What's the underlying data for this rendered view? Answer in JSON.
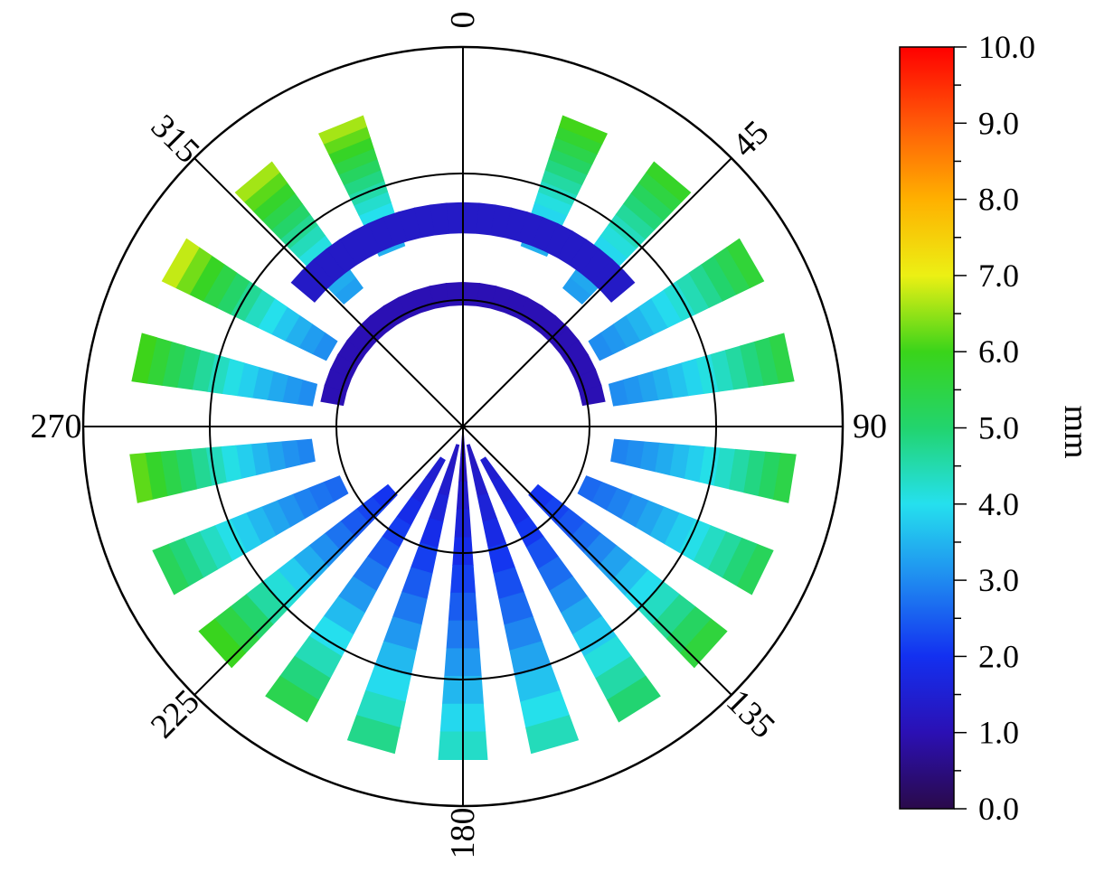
{
  "chart_data": {
    "type": "heatmap",
    "projection": "polar",
    "title": "",
    "angle_ticks": [
      "0",
      "45",
      "90",
      "135",
      "180",
      "225",
      "270",
      "315"
    ],
    "angle_values_deg": [
      0,
      45,
      90,
      135,
      180,
      225,
      270,
      315
    ],
    "radial_rings": 3,
    "colorbar": {
      "label": "mm",
      "min": 0.0,
      "max": 10.0,
      "tick_labels": [
        "0.0",
        "1.0",
        "2.0",
        "3.0",
        "4.0",
        "5.0",
        "6.0",
        "7.0",
        "8.0",
        "9.0",
        "10.0"
      ],
      "tick_values": [
        0,
        1,
        2,
        3,
        4,
        5,
        6,
        7,
        8,
        9,
        10
      ],
      "colormap": [
        "#2a0a4a",
        "#2b10b4",
        "#1330f0",
        "#1f8af0",
        "#25e0ee",
        "#22d46e",
        "#3ad41a",
        "#ecf014",
        "#ffb000",
        "#ff5a08",
        "#ff0000"
      ]
    },
    "strips": [
      {
        "angle_deg": 180,
        "inner_r": 0.0,
        "outer_r": 0.88,
        "value_inner": 1.0,
        "value_outer": 4.5
      },
      {
        "angle_deg": 196,
        "inner_r": 0.05,
        "outer_r": 0.88,
        "value_inner": 1.2,
        "value_outer": 5.0
      },
      {
        "angle_deg": 164,
        "inner_r": 0.05,
        "outer_r": 0.88,
        "value_inner": 1.2,
        "value_outer": 4.6
      },
      {
        "angle_deg": 212,
        "inner_r": 0.1,
        "outer_r": 0.88,
        "value_inner": 1.4,
        "value_outer": 5.6
      },
      {
        "angle_deg": 148,
        "inner_r": 0.1,
        "outer_r": 0.88,
        "value_inner": 1.4,
        "value_outer": 5.2
      },
      {
        "angle_deg": 228,
        "inner_r": 0.25,
        "outer_r": 0.88,
        "value_inner": 2.0,
        "value_outer": 6.2
      },
      {
        "angle_deg": 132,
        "inner_r": 0.25,
        "outer_r": 0.88,
        "value_inner": 2.0,
        "value_outer": 5.8
      },
      {
        "angle_deg": 244,
        "inner_r": 0.35,
        "outer_r": 0.88,
        "value_inner": 2.6,
        "value_outer": 5.4
      },
      {
        "angle_deg": 116,
        "inner_r": 0.35,
        "outer_r": 0.88,
        "value_inner": 2.6,
        "value_outer": 5.4
      },
      {
        "angle_deg": 261,
        "inner_r": 0.4,
        "outer_r": 0.88,
        "value_inner": 2.9,
        "value_outer": 6.4
      },
      {
        "angle_deg": 99,
        "inner_r": 0.4,
        "outer_r": 0.88,
        "value_inner": 2.9,
        "value_outer": 5.6
      },
      {
        "angle_deg": 282,
        "inner_r": 0.4,
        "outer_r": 0.88,
        "value_inner": 3.0,
        "value_outer": 6.2
      },
      {
        "angle_deg": 78,
        "inner_r": 0.4,
        "outer_r": 0.88,
        "value_inner": 3.0,
        "value_outer": 5.6
      },
      {
        "angle_deg": 300,
        "inner_r": 0.4,
        "outer_r": 0.88,
        "value_inner": 3.0,
        "value_outer": 7.0
      },
      {
        "angle_deg": 60,
        "inner_r": 0.4,
        "outer_r": 0.88,
        "value_inner": 3.0,
        "value_outer": 5.8
      },
      {
        "angle_deg": 320,
        "inner_r": 0.45,
        "outer_r": 0.86,
        "value_inner": 3.2,
        "value_outer": 6.8
      },
      {
        "angle_deg": 40,
        "inner_r": 0.45,
        "outer_r": 0.86,
        "value_inner": 3.2,
        "value_outer": 6.0
      },
      {
        "angle_deg": 338,
        "inner_r": 0.5,
        "outer_r": 0.86,
        "value_inner": 3.4,
        "value_outer": 6.8
      },
      {
        "angle_deg": 22,
        "inner_r": 0.5,
        "outer_r": 0.86,
        "value_inner": 3.4,
        "value_outer": 6.2
      }
    ],
    "arches": [
      {
        "center_r": 0.55,
        "half_span_deg": 50,
        "band_r": 0.08,
        "value": 1.3
      },
      {
        "center_r": 0.35,
        "half_span_deg": 80,
        "band_r": 0.06,
        "value": 1.0
      }
    ]
  }
}
